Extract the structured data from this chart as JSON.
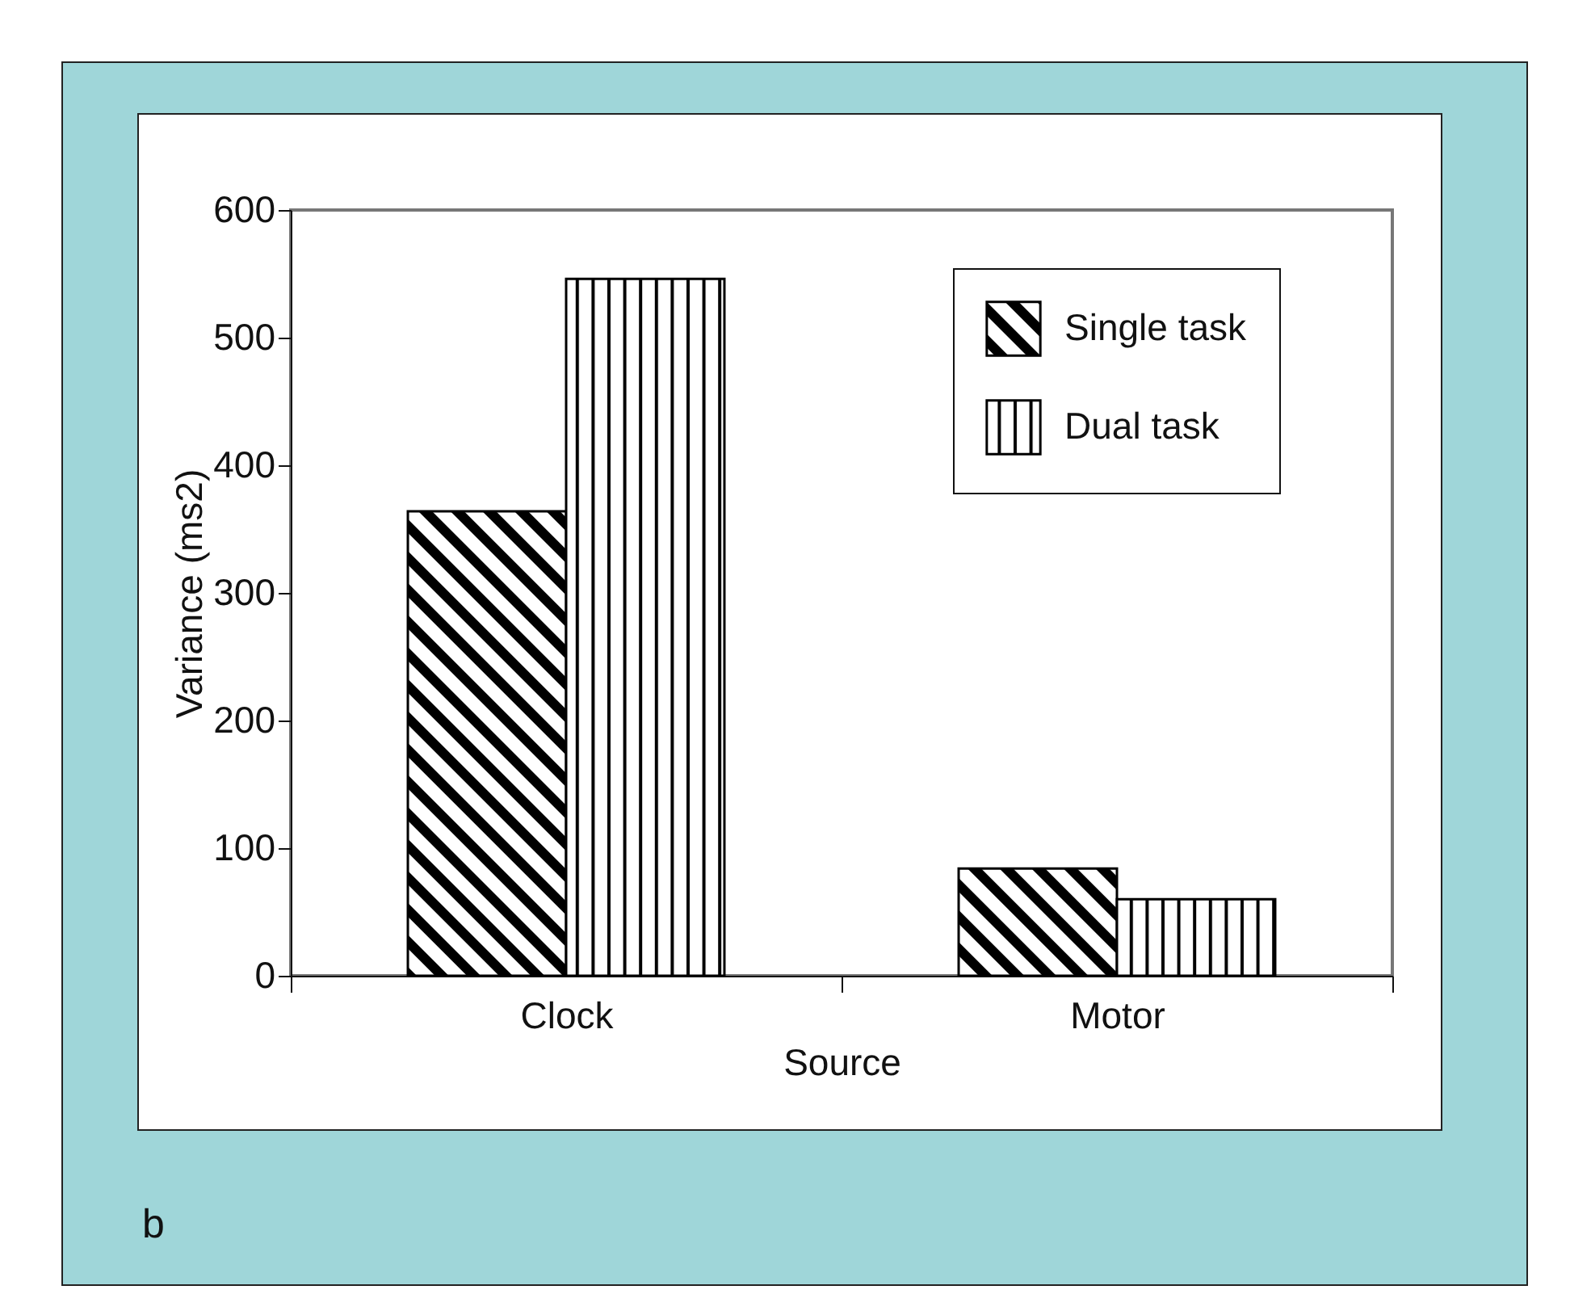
{
  "chart_data": {
    "type": "bar",
    "xlabel": "Source",
    "ylabel": "Variance (ms2)",
    "categories": [
      "Clock",
      "Motor"
    ],
    "series": [
      {
        "name": "Single task",
        "color": "#000000",
        "values": [
          364,
          84
        ]
      },
      {
        "name": "Dual task",
        "color": "#000000",
        "values": [
          546,
          60
        ]
      }
    ],
    "ylim": [
      0,
      600
    ],
    "yticks": [
      0,
      100,
      200,
      300,
      400,
      500,
      600
    ],
    "grid": false,
    "legend": "top right",
    "annotations": [
      "b"
    ]
  }
}
